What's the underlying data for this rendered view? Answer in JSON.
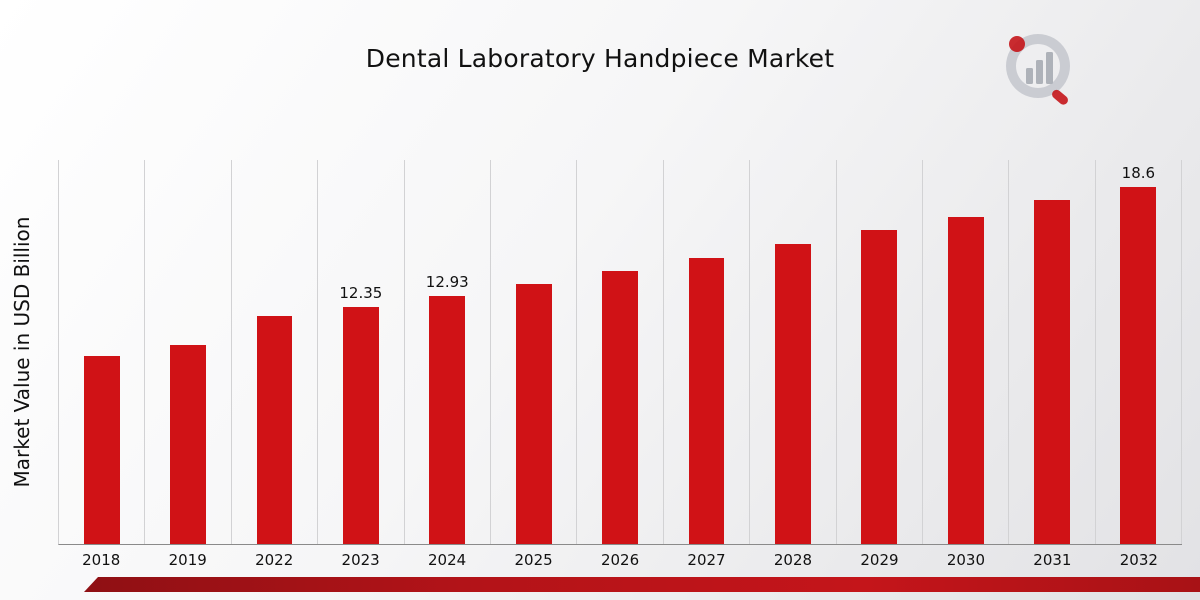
{
  "page": {
    "title": "Dental Laboratory Handpiece Market",
    "ylabel": "Market Value in USD Billion"
  },
  "chart_data": {
    "type": "bar",
    "title": "Dental Laboratory Handpiece Market",
    "xlabel": "",
    "ylabel": "Market Value in USD Billion",
    "categories": [
      "2018",
      "2019",
      "2022",
      "2023",
      "2024",
      "2025",
      "2026",
      "2027",
      "2028",
      "2029",
      "2030",
      "2031",
      "2032"
    ],
    "values": [
      9.8,
      10.35,
      11.9,
      12.35,
      12.93,
      13.55,
      14.2,
      14.9,
      15.6,
      16.35,
      17.05,
      17.9,
      18.6
    ],
    "data_labels": [
      "",
      "",
      "",
      "12.35",
      "12.93",
      "",
      "",
      "",
      "",
      "",
      "",
      "",
      "18.6"
    ],
    "bar_color": "#d01216",
    "ylim": [
      0,
      20
    ],
    "grid": "vertical-only",
    "legend": "none"
  },
  "branding": {
    "logo_name": "market-research-logo",
    "accent_color": "#b31318",
    "logo_gray": "#b9bcc2",
    "logo_red": "#c4151a"
  }
}
